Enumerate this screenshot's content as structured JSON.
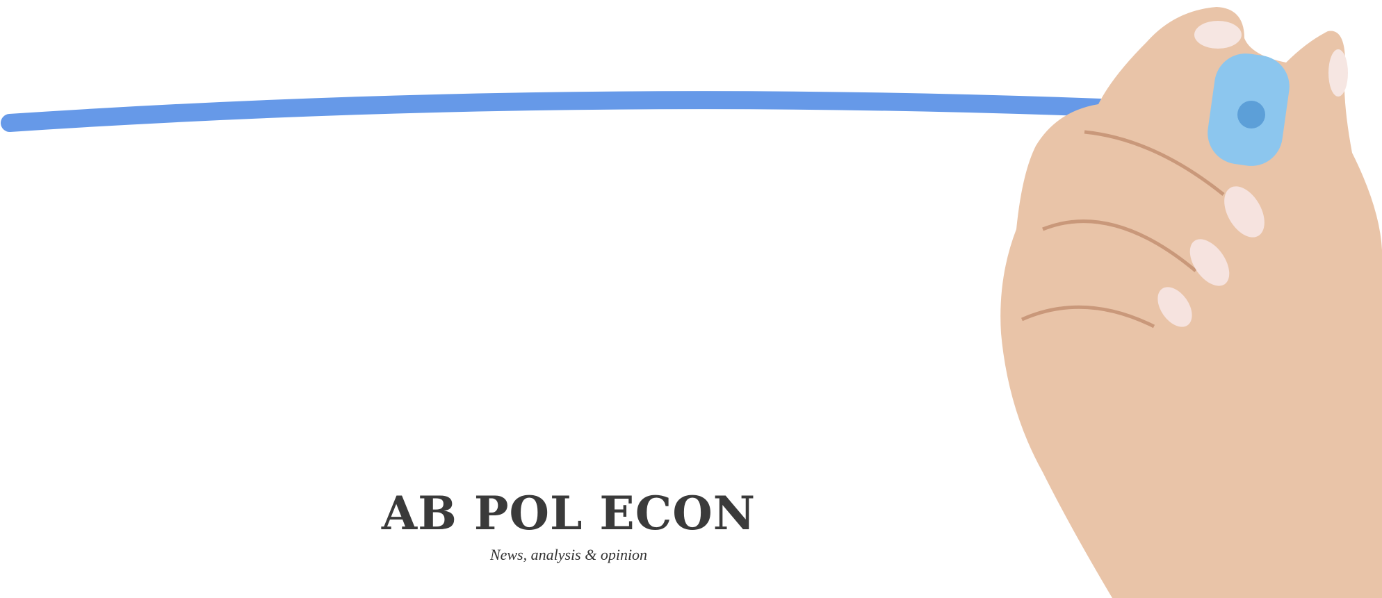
{
  "header": {
    "title": "AB POL ECON",
    "tagline": "News, analysis & opinion"
  }
}
